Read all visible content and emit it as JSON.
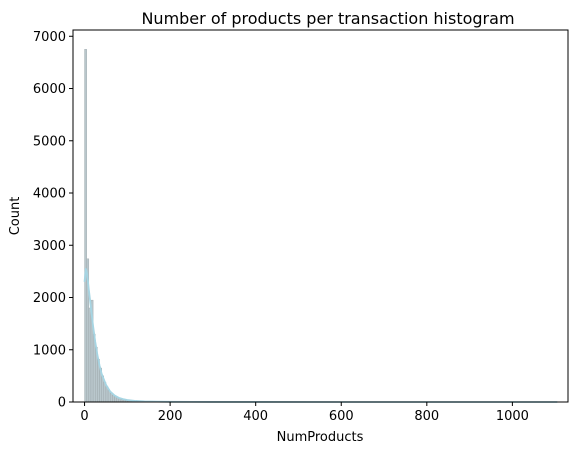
{
  "chart_data": {
    "type": "bar",
    "title": "Number of products per transaction histogram",
    "xlabel": "NumProducts",
    "ylabel": "Count",
    "xlim": [
      -27,
      1130
    ],
    "ylim": [
      0,
      7120
    ],
    "xticks": [
      0,
      200,
      400,
      600,
      800,
      1000
    ],
    "yticks": [
      0,
      1000,
      2000,
      3000,
      4000,
      5000,
      6000,
      7000
    ],
    "grid": false,
    "bin_width": 5,
    "bins": [
      {
        "x0": 0,
        "x1": 5,
        "count": 6750
      },
      {
        "x0": 5,
        "x1": 10,
        "count": 2740
      },
      {
        "x0": 10,
        "x1": 15,
        "count": 1800
      },
      {
        "x0": 15,
        "x1": 20,
        "count": 1950
      },
      {
        "x0": 20,
        "x1": 25,
        "count": 1300
      },
      {
        "x0": 25,
        "x1": 30,
        "count": 1050
      },
      {
        "x0": 30,
        "x1": 35,
        "count": 820
      },
      {
        "x0": 35,
        "x1": 40,
        "count": 650
      },
      {
        "x0": 40,
        "x1": 45,
        "count": 500
      },
      {
        "x0": 45,
        "x1": 50,
        "count": 380
      },
      {
        "x0": 50,
        "x1": 55,
        "count": 290
      },
      {
        "x0": 55,
        "x1": 60,
        "count": 220
      },
      {
        "x0": 60,
        "x1": 65,
        "count": 170
      },
      {
        "x0": 65,
        "x1": 70,
        "count": 130
      },
      {
        "x0": 70,
        "x1": 75,
        "count": 100
      },
      {
        "x0": 75,
        "x1": 80,
        "count": 80
      },
      {
        "x0": 80,
        "x1": 85,
        "count": 60
      },
      {
        "x0": 85,
        "x1": 90,
        "count": 45
      },
      {
        "x0": 90,
        "x1": 95,
        "count": 35
      },
      {
        "x0": 95,
        "x1": 100,
        "count": 28
      },
      {
        "x0": 100,
        "x1": 110,
        "count": 20
      },
      {
        "x0": 110,
        "x1": 120,
        "count": 14
      },
      {
        "x0": 120,
        "x1": 130,
        "count": 10
      },
      {
        "x0": 130,
        "x1": 140,
        "count": 7
      },
      {
        "x0": 140,
        "x1": 150,
        "count": 5
      },
      {
        "x0": 150,
        "x1": 170,
        "count": 4
      },
      {
        "x0": 170,
        "x1": 200,
        "count": 3
      }
    ],
    "kde": {
      "x": [
        0,
        3,
        6,
        10,
        15,
        20,
        25,
        30,
        35,
        40,
        50,
        60,
        70,
        80,
        90,
        100,
        120,
        140,
        170,
        200,
        250,
        300,
        400,
        600,
        800,
        1000,
        1105
      ],
      "y": [
        2300,
        2550,
        2450,
        2150,
        1800,
        1450,
        1150,
        900,
        700,
        540,
        330,
        200,
        125,
        80,
        55,
        38,
        20,
        12,
        7,
        4,
        2,
        1,
        1,
        0,
        0,
        0,
        0
      ]
    },
    "colors": {
      "bar_fill": "#b9c7cc",
      "bar_edge": "#9aa4a8",
      "kde_line": "#a6d5e3",
      "axis": "#000000"
    }
  }
}
